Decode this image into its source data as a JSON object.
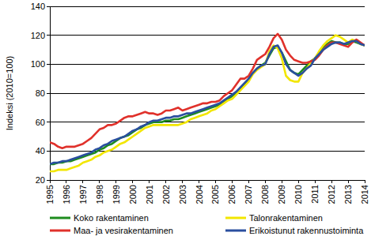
{
  "chart_data": {
    "type": "line",
    "y_label": "Indeksi (2010=100)",
    "x": [
      1995,
      1995.25,
      1995.5,
      1995.75,
      1996,
      1996.25,
      1996.5,
      1996.75,
      1997,
      1997.25,
      1997.5,
      1997.75,
      1998,
      1998.25,
      1998.5,
      1998.75,
      1999,
      1999.25,
      1999.5,
      1999.75,
      2000,
      2000.25,
      2000.5,
      2000.75,
      2001,
      2001.25,
      2001.5,
      2001.75,
      2002,
      2002.25,
      2002.5,
      2002.75,
      2003,
      2003.25,
      2003.5,
      2003.75,
      2004,
      2004.25,
      2004.5,
      2004.75,
      2005,
      2005.25,
      2005.5,
      2005.75,
      2006,
      2006.25,
      2006.5,
      2006.75,
      2007,
      2007.25,
      2007.5,
      2007.75,
      2008,
      2008.25,
      2008.5,
      2008.75,
      2009,
      2009.25,
      2009.5,
      2009.75,
      2010,
      2010.25,
      2010.5,
      2010.75,
      2011,
      2011.25,
      2011.5,
      2011.75,
      2012,
      2012.25,
      2012.5,
      2012.75,
      2013,
      2013.25,
      2013.5,
      2013.75,
      2014
    ],
    "series": [
      {
        "name": "Koko rakentaminen",
        "color": "#1e8c1e",
        "values": [
          31,
          31,
          32,
          32,
          33,
          33,
          34,
          35,
          36,
          37,
          38,
          39,
          41,
          42,
          44,
          45,
          47,
          49,
          50,
          51,
          53,
          55,
          56,
          58,
          59,
          60,
          60,
          60,
          61,
          61,
          62,
          62,
          63,
          64,
          65,
          66,
          67,
          68,
          69,
          70,
          71,
          72,
          74,
          76,
          78,
          80,
          83,
          86,
          90,
          94,
          97,
          99,
          101,
          106,
          111,
          112,
          108,
          102,
          96,
          94,
          93,
          96,
          99,
          102,
          104,
          108,
          112,
          114,
          116,
          115,
          115,
          114,
          114,
          116,
          115,
          114,
          113
        ]
      },
      {
        "name": "Talonrakentaminen",
        "color": "#f2e600",
        "values": [
          26,
          26,
          27,
          27,
          27,
          28,
          29,
          30,
          32,
          33,
          34,
          36,
          37,
          39,
          40,
          41,
          43,
          45,
          46,
          48,
          50,
          52,
          54,
          56,
          57,
          58,
          58,
          58,
          58,
          58,
          58,
          58,
          59,
          60,
          62,
          63,
          64,
          65,
          66,
          68,
          69,
          71,
          73,
          75,
          76,
          79,
          82,
          85,
          88,
          93,
          96,
          98,
          100,
          109,
          113,
          111,
          104,
          92,
          89,
          88,
          88,
          94,
          97,
          101,
          104,
          109,
          113,
          116,
          118,
          120,
          119,
          117,
          115,
          117,
          116,
          114,
          113
        ]
      },
      {
        "name": "Maa- ja vesirakentaminen",
        "color": "#e0312b",
        "values": [
          46,
          45,
          43,
          42,
          43,
          43,
          43,
          44,
          45,
          47,
          49,
          52,
          55,
          56,
          58,
          58,
          59,
          61,
          63,
          64,
          64,
          65,
          66,
          67,
          66,
          66,
          65,
          66,
          68,
          68,
          69,
          70,
          68,
          69,
          70,
          71,
          72,
          73,
          73,
          74,
          74,
          75,
          78,
          80,
          82,
          86,
          90,
          90,
          92,
          97,
          103,
          105,
          107,
          112,
          118,
          121,
          117,
          110,
          106,
          103,
          102,
          101,
          101,
          102,
          103,
          106,
          110,
          113,
          115,
          115,
          114,
          113,
          112,
          115,
          117,
          115,
          113
        ]
      },
      {
        "name": "Erikoistunut rakennustoiminta",
        "color": "#2a4f9f",
        "values": [
          31,
          32,
          32,
          33,
          33,
          34,
          35,
          36,
          37,
          38,
          39,
          41,
          42,
          44,
          45,
          47,
          48,
          49,
          50,
          52,
          54,
          55,
          57,
          58,
          60,
          61,
          61,
          62,
          63,
          63,
          64,
          64,
          65,
          66,
          66,
          67,
          68,
          69,
          70,
          71,
          72,
          73,
          75,
          77,
          79,
          81,
          84,
          87,
          90,
          94,
          97,
          99,
          100,
          107,
          112,
          113,
          108,
          100,
          96,
          94,
          92,
          94,
          97,
          99,
          104,
          107,
          110,
          112,
          114,
          115,
          115,
          114,
          115,
          116,
          116,
          114,
          113
        ]
      }
    ],
    "xlim": [
      1995,
      2014
    ],
    "xticks": [
      1995,
      1996,
      1997,
      1998,
      1999,
      2000,
      2001,
      2002,
      2003,
      2004,
      2005,
      2006,
      2007,
      2008,
      2009,
      2010,
      2011,
      2012,
      2013,
      2014
    ],
    "ylim": [
      20,
      140
    ],
    "yticks": [
      20,
      40,
      60,
      80,
      100,
      120,
      140
    ],
    "grid": true,
    "legend": "bottom"
  }
}
